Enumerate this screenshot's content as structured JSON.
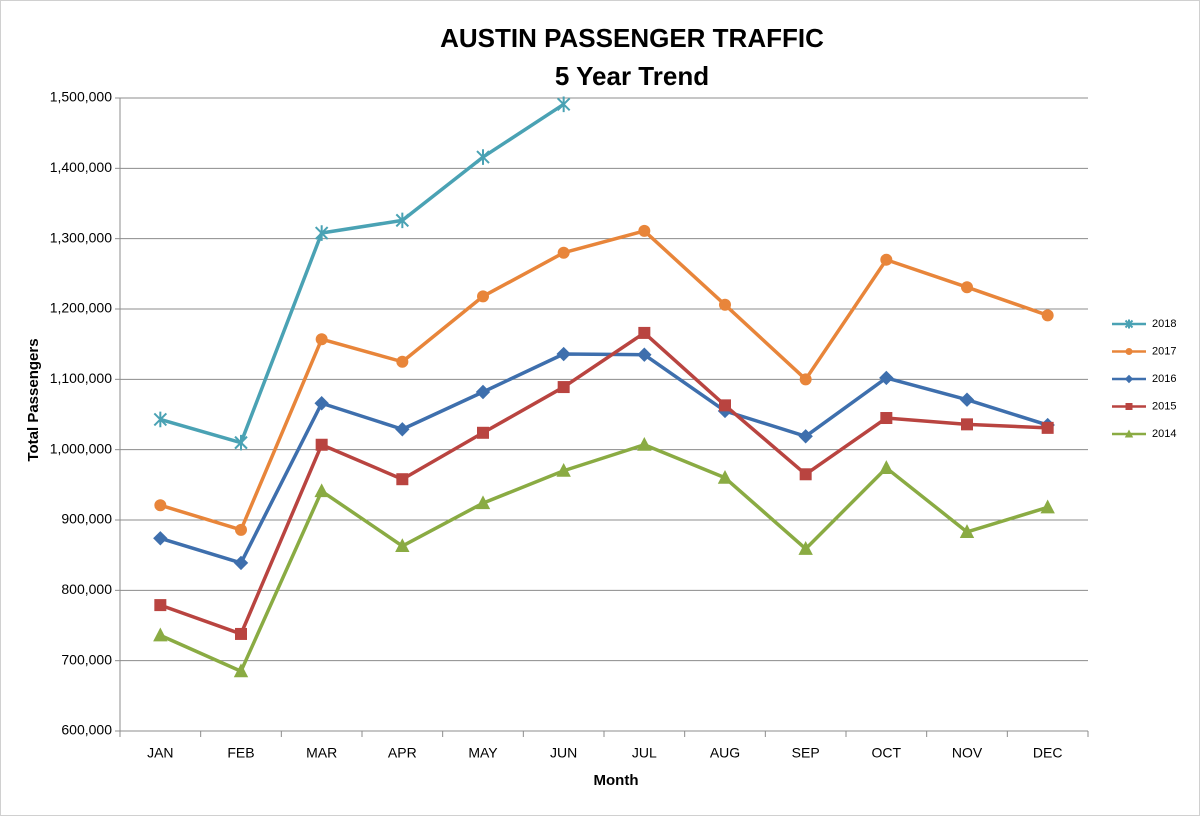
{
  "chart_data": {
    "type": "line",
    "title": "AUSTIN PASSENGER TRAFFIC",
    "subtitle": "5 Year Trend",
    "x_label": "Month",
    "y_label": "Total Passengers",
    "categories": [
      "JAN",
      "FEB",
      "MAR",
      "APR",
      "MAY",
      "JUN",
      "JUL",
      "AUG",
      "SEP",
      "OCT",
      "NOV",
      "DEC"
    ],
    "series": [
      {
        "name": "2018",
        "color": "#4aa2b4",
        "marker": "star",
        "values": [
          1043000,
          1010000,
          1308000,
          1326000,
          1416000,
          1491000,
          null,
          null,
          null,
          null,
          null,
          null
        ]
      },
      {
        "name": "2017",
        "color": "#e8853a",
        "marker": "circle",
        "values": [
          921000,
          886000,
          1157000,
          1125000,
          1218000,
          1280000,
          1311000,
          1206000,
          1100000,
          1270000,
          1231000,
          1191000
        ]
      },
      {
        "name": "2016",
        "color": "#3e6fad",
        "marker": "diamond",
        "values": [
          874000,
          839000,
          1066000,
          1029000,
          1082000,
          1136000,
          1135000,
          1055000,
          1019000,
          1102000,
          1071000,
          1035000
        ]
      },
      {
        "name": "2015",
        "color": "#b94440",
        "marker": "square",
        "values": [
          779000,
          738000,
          1007000,
          958000,
          1024000,
          1089000,
          1166000,
          1063000,
          965000,
          1045000,
          1036000,
          1031000
        ]
      },
      {
        "name": "2014",
        "color": "#8aab43",
        "marker": "triangle",
        "values": [
          736000,
          685000,
          941000,
          863000,
          924000,
          970000,
          1007000,
          960000,
          859000,
          974000,
          883000,
          918000
        ]
      }
    ],
    "ylim": [
      600000,
      1500000
    ],
    "yticks": [
      {
        "value": 600000,
        "label": "600,000"
      },
      {
        "value": 700000,
        "label": "700,000"
      },
      {
        "value": 800000,
        "label": "800,000"
      },
      {
        "value": 900000,
        "label": "900,000"
      },
      {
        "value": 1000000,
        "label": "1,000,000"
      },
      {
        "value": 1100000,
        "label": "1,100,000"
      },
      {
        "value": 1200000,
        "label": "1,200,000"
      },
      {
        "value": 1300000,
        "label": "1,300,000"
      },
      {
        "value": 1400000,
        "label": "1,400,000"
      },
      {
        "value": 1500000,
        "label": "1,500,000"
      }
    ],
    "grid": true,
    "legend": "right"
  }
}
